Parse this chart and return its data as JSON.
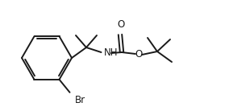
{
  "bg_color": "#ffffff",
  "line_color": "#1a1a1a",
  "text_color": "#1a1a1a",
  "line_width": 1.4,
  "font_size": 8.5,
  "figsize": [
    2.84,
    1.38
  ],
  "dpi": 100,
  "xlim": [
    0,
    2.84
  ],
  "ylim": [
    0,
    1.38
  ]
}
